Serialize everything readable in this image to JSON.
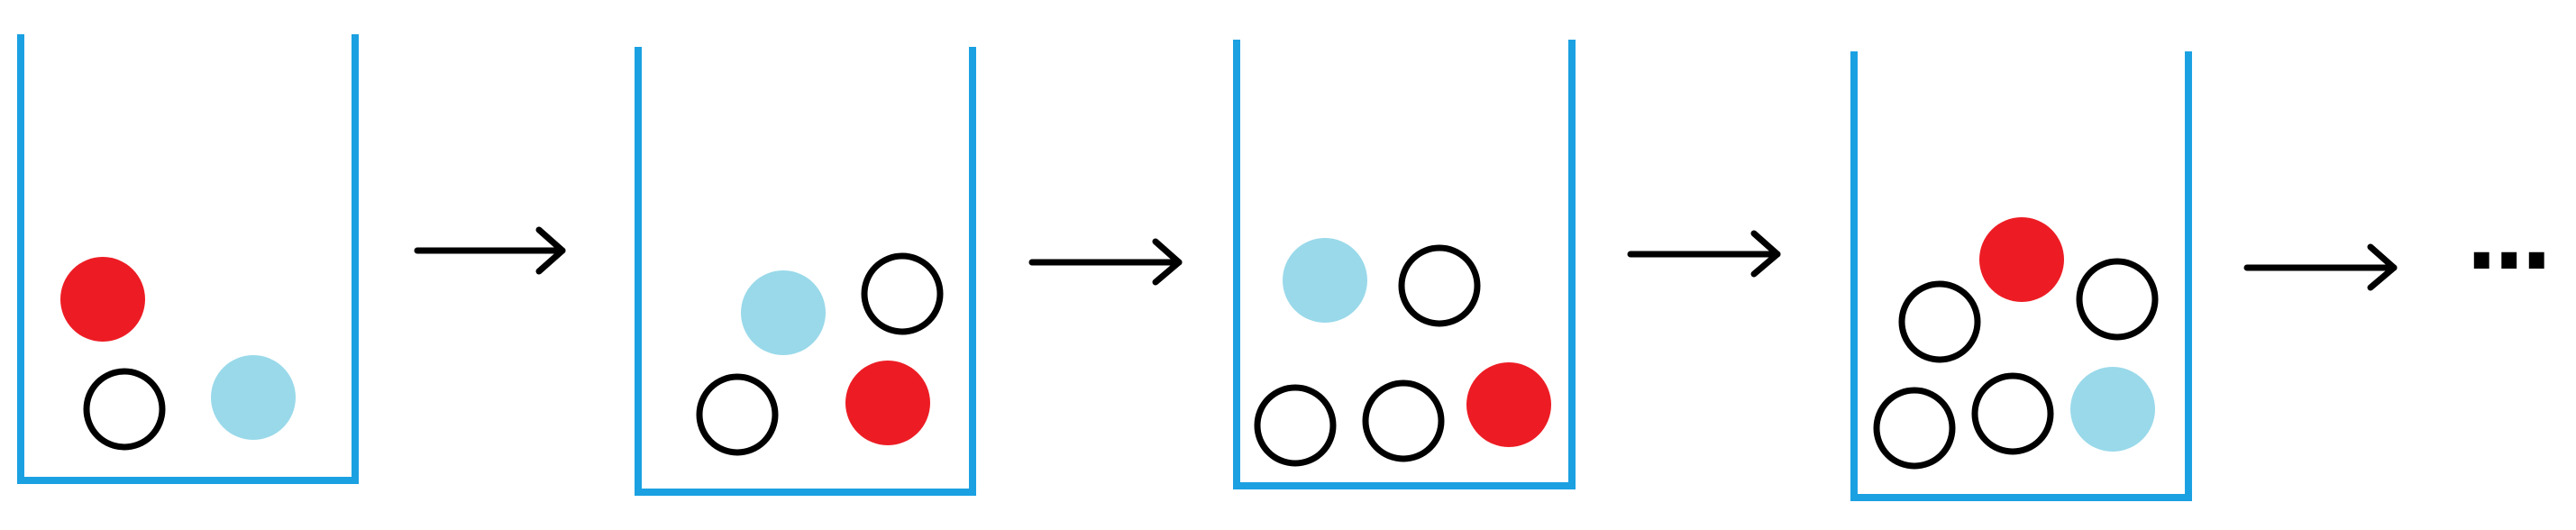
{
  "colors": {
    "beaker": "#1ba1e2",
    "red_ball": "#ed1c24",
    "blue_ball": "#99d9ea",
    "empty_ball_outline": "#000000",
    "arrow": "#000000"
  },
  "stages": [
    {
      "balls": [
        "red",
        "empty",
        "blue"
      ]
    },
    {
      "balls": [
        "blue",
        "empty",
        "empty",
        "red"
      ]
    },
    {
      "balls": [
        "blue",
        "empty",
        "empty",
        "empty",
        "red"
      ]
    },
    {
      "balls": [
        "red",
        "empty",
        "empty",
        "empty",
        "empty",
        "blue"
      ]
    }
  ],
  "ellipsis": "..."
}
